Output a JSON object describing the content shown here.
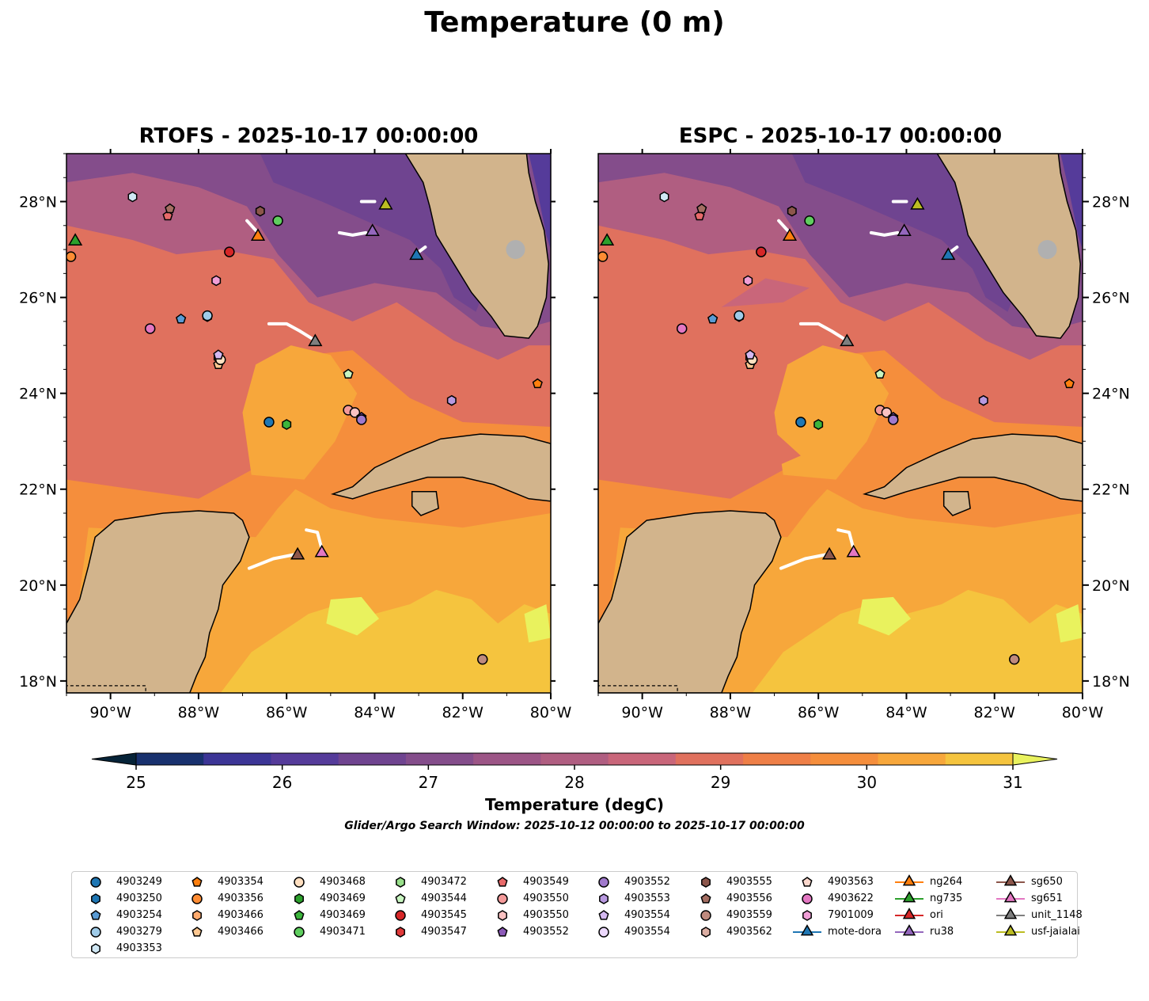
{
  "title": "Temperature (0 m)",
  "panels": [
    {
      "id": "rtofs",
      "title": "RTOFS - 2025-10-17 00:00:00"
    },
    {
      "id": "espc",
      "title": "ESPC - 2025-10-17 00:00:00"
    }
  ],
  "map": {
    "lon_range": [
      -91.0,
      -80.0
    ],
    "lat_range": [
      17.75,
      29.0
    ],
    "lon_ticks": [
      "90°W",
      "88°W",
      "86°W",
      "84°W",
      "82°W",
      "80°W"
    ],
    "lat_ticks": [
      "18°N",
      "20°N",
      "22°N",
      "24°N",
      "26°N",
      "28°N"
    ],
    "land_color": "#d2b48c",
    "glider_track_color": "#ffffff"
  },
  "colorbar": {
    "label": "Temperature (degC)",
    "ticks": [
      "25",
      "26",
      "27",
      "28",
      "29",
      "30",
      "31"
    ],
    "colors": [
      "#062338",
      "#18316e",
      "#3c3596",
      "#553b9a",
      "#6f4490",
      "#844d8b",
      "#9c5586",
      "#b05e81",
      "#c9667a",
      "#e0715e",
      "#ee7f47",
      "#f58e3c",
      "#f7a73b",
      "#f5c43e",
      "#e9f25e"
    ]
  },
  "search_window": "Glider/Argo Search Window: 2025-10-12 00:00:00 to 2025-10-17 00:00:00",
  "legend": [
    {
      "label": "4903249",
      "color": "#1f77b4",
      "shape": "circle"
    },
    {
      "label": "4903250",
      "color": "#1f77b4",
      "shape": "hexagon"
    },
    {
      "label": "4903254",
      "color": "#5a9bd4",
      "shape": "pentagon"
    },
    {
      "label": "4903279",
      "color": "#9fcbe8",
      "shape": "circle"
    },
    {
      "label": "4903353",
      "color": "#d0e8f5",
      "shape": "hexagon"
    },
    {
      "label": "4903354",
      "color": "#ff7f0e",
      "shape": "pentagon"
    },
    {
      "label": "4903356",
      "color": "#ff8c33",
      "shape": "circle"
    },
    {
      "label": "4903466",
      "color": "#ffab6e",
      "shape": "hexagon"
    },
    {
      "label": "4903466",
      "color": "#ffc891",
      "shape": "pentagon"
    },
    {
      "label": "4903468",
      "color": "#ffdfc0",
      "shape": "circle"
    },
    {
      "label": "4903469",
      "color": "#2ca02c",
      "shape": "hexagon"
    },
    {
      "label": "4903469",
      "color": "#3cb53c",
      "shape": "pentagon"
    },
    {
      "label": "4903471",
      "color": "#5fce5f",
      "shape": "circle"
    },
    {
      "label": "4903472",
      "color": "#98df8a",
      "shape": "hexagon"
    },
    {
      "label": "4903544",
      "color": "#c8f5c0",
      "shape": "pentagon"
    },
    {
      "label": "4903545",
      "color": "#d62728",
      "shape": "circle"
    },
    {
      "label": "4903547",
      "color": "#e03a3a",
      "shape": "hexagon"
    },
    {
      "label": "4903549",
      "color": "#e86a6a",
      "shape": "pentagon"
    },
    {
      "label": "4903550",
      "color": "#f49a9a",
      "shape": "circle"
    },
    {
      "label": "4903550",
      "color": "#fbc2c2",
      "shape": "hexagon"
    },
    {
      "label": "4903552",
      "color": "#8c5ab8",
      "shape": "pentagon"
    },
    {
      "label": "4903552",
      "color": "#a079cc",
      "shape": "circle"
    },
    {
      "label": "4903553",
      "color": "#b899e0",
      "shape": "hexagon"
    },
    {
      "label": "4903554",
      "color": "#d4b8f0",
      "shape": "pentagon"
    },
    {
      "label": "4903554",
      "color": "#ecd8fc",
      "shape": "circle"
    },
    {
      "label": "4903555",
      "color": "#8c564b",
      "shape": "hexagon"
    },
    {
      "label": "4903556",
      "color": "#a46e62",
      "shape": "pentagon"
    },
    {
      "label": "4903559",
      "color": "#bf8a7e",
      "shape": "circle"
    },
    {
      "label": "4903562",
      "color": "#dcaea3",
      "shape": "hexagon"
    },
    {
      "label": "4903563",
      "color": "#fbd7cc",
      "shape": "pentagon"
    },
    {
      "label": "4903622",
      "color": "#e377c2",
      "shape": "circle"
    },
    {
      "label": "7901009",
      "color": "#f09ed6",
      "shape": "hexagon"
    },
    {
      "label": "mote-dora",
      "color": "#1f77b4",
      "shape": "triangle"
    },
    {
      "label": "ng264",
      "color": "#ff7f0e",
      "shape": "triangle"
    },
    {
      "label": "ng735",
      "color": "#2ca02c",
      "shape": "triangle"
    },
    {
      "label": "ori",
      "color": "#d62728",
      "shape": "triangle"
    },
    {
      "label": "ru38",
      "color": "#9467bd",
      "shape": "triangle"
    },
    {
      "label": "sg650",
      "color": "#8c564b",
      "shape": "triangle"
    },
    {
      "label": "sg651",
      "color": "#e377c2",
      "shape": "triangle"
    },
    {
      "label": "unit_1148",
      "color": "#7f7f7f",
      "shape": "triangle"
    },
    {
      "label": "usf-jaialai",
      "color": "#bcbd22",
      "shape": "triangle"
    }
  ],
  "observations": [
    {
      "lon": -86.4,
      "lat": 23.4,
      "color": "#1f77b4",
      "shape": "circle"
    },
    {
      "lon": -87.8,
      "lat": 25.6,
      "color": "#1f77b4",
      "shape": "hexagon"
    },
    {
      "lon": -88.4,
      "lat": 25.55,
      "color": "#5a9bd4",
      "shape": "pentagon"
    },
    {
      "lon": -87.8,
      "lat": 25.62,
      "color": "#9fcbe8",
      "shape": "circle"
    },
    {
      "lon": -89.5,
      "lat": 28.1,
      "color": "#d0e8f5",
      "shape": "hexagon"
    },
    {
      "lon": -80.3,
      "lat": 24.2,
      "color": "#ff7f0e",
      "shape": "pentagon"
    },
    {
      "lon": -90.9,
      "lat": 26.85,
      "color": "#ff8c33",
      "shape": "circle"
    },
    {
      "lon": -87.55,
      "lat": 24.75,
      "color": "#ffab6e",
      "shape": "hexagon"
    },
    {
      "lon": -87.55,
      "lat": 24.6,
      "color": "#ffc891",
      "shape": "pentagon"
    },
    {
      "lon": -87.5,
      "lat": 24.7,
      "color": "#ffdfc0",
      "shape": "circle"
    },
    {
      "lon": -86.0,
      "lat": 23.35,
      "color": "#3cb53c",
      "shape": "hexagon"
    },
    {
      "lon": -84.6,
      "lat": 24.4,
      "color": "#c8f5c0",
      "shape": "pentagon"
    },
    {
      "lon": -86.2,
      "lat": 27.6,
      "color": "#5fce5f",
      "shape": "circle"
    },
    {
      "lon": -87.3,
      "lat": 26.95,
      "color": "#d62728",
      "shape": "circle"
    },
    {
      "lon": -88.7,
      "lat": 27.7,
      "color": "#e86a6a",
      "shape": "pentagon"
    },
    {
      "lon": -84.6,
      "lat": 23.65,
      "color": "#f49a9a",
      "shape": "circle"
    },
    {
      "lon": -84.45,
      "lat": 23.6,
      "color": "#fbc2c2",
      "shape": "circle"
    },
    {
      "lon": -84.3,
      "lat": 23.5,
      "color": "#8c5ab8",
      "shape": "pentagon"
    },
    {
      "lon": -84.3,
      "lat": 23.45,
      "color": "#a079cc",
      "shape": "circle"
    },
    {
      "lon": -82.25,
      "lat": 23.85,
      "color": "#b899e0",
      "shape": "hexagon"
    },
    {
      "lon": -87.55,
      "lat": 24.8,
      "color": "#d4b8f0",
      "shape": "pentagon"
    },
    {
      "lon": -86.6,
      "lat": 27.8,
      "color": "#8c564b",
      "shape": "hexagon"
    },
    {
      "lon": -88.65,
      "lat": 27.85,
      "color": "#a46e62",
      "shape": "pentagon"
    },
    {
      "lon": -81.55,
      "lat": 18.45,
      "color": "#bf8a7e",
      "shape": "circle"
    },
    {
      "lon": -89.1,
      "lat": 25.35,
      "color": "#e377c2",
      "shape": "circle"
    },
    {
      "lon": -87.6,
      "lat": 26.35,
      "color": "#f09ed6",
      "shape": "hexagon"
    },
    {
      "lon": -83.05,
      "lat": 26.9,
      "color": "#1f77b4",
      "shape": "triangle"
    },
    {
      "lon": -86.65,
      "lat": 27.3,
      "color": "#ff7f0e",
      "shape": "triangle"
    },
    {
      "lon": -90.8,
      "lat": 27.2,
      "color": "#2ca02c",
      "shape": "triangle"
    },
    {
      "lon": -84.05,
      "lat": 27.4,
      "color": "#9467bd",
      "shape": "triangle"
    },
    {
      "lon": -85.75,
      "lat": 20.65,
      "color": "#8c564b",
      "shape": "triangle"
    },
    {
      "lon": -85.2,
      "lat": 20.7,
      "color": "#e377c2",
      "shape": "triangle"
    },
    {
      "lon": -85.35,
      "lat": 25.1,
      "color": "#7f7f7f",
      "shape": "triangle"
    },
    {
      "lon": -83.75,
      "lat": 27.95,
      "color": "#bcbd22",
      "shape": "triangle"
    }
  ],
  "glider_tracks": [
    [
      [
        -86.4,
        25.45
      ],
      [
        -86.0,
        25.45
      ],
      [
        -85.7,
        25.3
      ],
      [
        -85.35,
        25.1
      ]
    ],
    [
      [
        -86.85,
        20.35
      ],
      [
        -86.3,
        20.55
      ],
      [
        -85.75,
        20.65
      ]
    ],
    [
      [
        -85.55,
        21.15
      ],
      [
        -85.3,
        21.1
      ],
      [
        -85.2,
        20.75
      ]
    ],
    [
      [
        -84.8,
        27.35
      ],
      [
        -84.5,
        27.3
      ],
      [
        -84.2,
        27.35
      ]
    ],
    [
      [
        -84.3,
        28.0
      ],
      [
        -84.0,
        28.0
      ]
    ],
    [
      [
        -83.0,
        26.95
      ],
      [
        -82.85,
        27.05
      ]
    ],
    [
      [
        -86.9,
        27.6
      ],
      [
        -86.7,
        27.4
      ]
    ]
  ]
}
